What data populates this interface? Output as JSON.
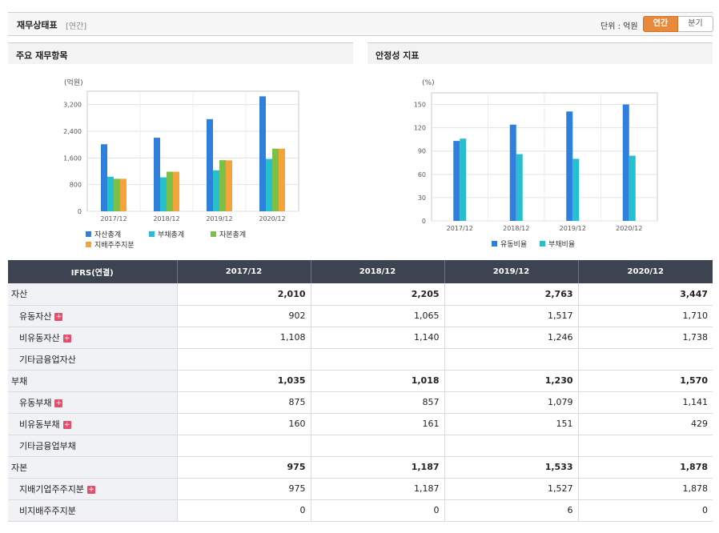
{
  "header": {
    "title": "재무상태표",
    "period": "[연간]",
    "unit": "단위 : 억원",
    "toggle_annual": "연간",
    "toggle_quarter": "분기"
  },
  "panels": {
    "left_title": "주요 재무항목",
    "right_title": "안정성 지표"
  },
  "chart_data": [
    {
      "type": "bar",
      "title": "주요 재무항목",
      "ylabel": "(억원)",
      "categories": [
        "2017/12",
        "2018/12",
        "2019/12",
        "2020/12"
      ],
      "ylim": [
        0,
        3600
      ],
      "yticks": [
        0,
        800,
        1600,
        2400,
        3200
      ],
      "ytick_labels": [
        "0",
        "800",
        "1,600",
        "2,400",
        "3,200"
      ],
      "grid": true,
      "legend_position": "bottom",
      "series": [
        {
          "name": "자산총계",
          "color": "#2f7fdc",
          "values": [
            2010,
            2205,
            2763,
            3447
          ]
        },
        {
          "name": "부채총계",
          "color": "#27bfcf",
          "values": [
            1035,
            1018,
            1230,
            1570
          ]
        },
        {
          "name": "자본총계",
          "color": "#7cc048",
          "values": [
            975,
            1187,
            1533,
            1878
          ]
        },
        {
          "name": "지배주주지분",
          "color": "#f4a43a",
          "values": [
            975,
            1187,
            1527,
            1878
          ]
        }
      ]
    },
    {
      "type": "bar",
      "title": "안정성 지표",
      "ylabel": "(%)",
      "categories": [
        "2017/12",
        "2018/12",
        "2019/12",
        "2020/12"
      ],
      "ylim": [
        0,
        165
      ],
      "yticks": [
        0,
        30,
        60,
        90,
        120,
        150
      ],
      "ytick_labels": [
        "0",
        "30",
        "60",
        "90",
        "120",
        "150"
      ],
      "grid": true,
      "legend_position": "bottom",
      "series": [
        {
          "name": "유동비율",
          "color": "#2f7fdc",
          "values": [
            103,
            124,
            141,
            150
          ]
        },
        {
          "name": "부채비율",
          "color": "#27bfcf",
          "values": [
            106,
            86,
            80,
            84
          ]
        }
      ]
    }
  ],
  "table": {
    "header_label": "IFRS(연결)",
    "years": [
      "2017/12",
      "2018/12",
      "2019/12",
      "2020/12"
    ],
    "rows": [
      {
        "label": "자산",
        "kind": "main",
        "expand": false,
        "values": [
          "2,010",
          "2,205",
          "2,763",
          "3,447"
        ]
      },
      {
        "label": "유동자산",
        "kind": "sub",
        "expand": true,
        "values": [
          "902",
          "1,065",
          "1,517",
          "1,710"
        ]
      },
      {
        "label": "비유동자산",
        "kind": "sub",
        "expand": true,
        "values": [
          "1,108",
          "1,140",
          "1,246",
          "1,738"
        ]
      },
      {
        "label": "기타금융업자산",
        "kind": "sub",
        "expand": false,
        "values": [
          "",
          "",
          "",
          ""
        ]
      },
      {
        "label": "부채",
        "kind": "main",
        "expand": false,
        "values": [
          "1,035",
          "1,018",
          "1,230",
          "1,570"
        ]
      },
      {
        "label": "유동부채",
        "kind": "sub",
        "expand": true,
        "values": [
          "875",
          "857",
          "1,079",
          "1,141"
        ]
      },
      {
        "label": "비유동부채",
        "kind": "sub",
        "expand": true,
        "values": [
          "160",
          "161",
          "151",
          "429"
        ]
      },
      {
        "label": "기타금융업부채",
        "kind": "sub",
        "expand": false,
        "values": [
          "",
          "",
          "",
          ""
        ]
      },
      {
        "label": "자본",
        "kind": "main",
        "expand": false,
        "values": [
          "975",
          "1,187",
          "1,533",
          "1,878"
        ]
      },
      {
        "label": "지배기업주주지분",
        "kind": "sub",
        "expand": true,
        "values": [
          "975",
          "1,187",
          "1,527",
          "1,878"
        ]
      },
      {
        "label": "비지배주주지분",
        "kind": "sub",
        "expand": false,
        "values": [
          "0",
          "0",
          "6",
          "0"
        ]
      }
    ]
  }
}
